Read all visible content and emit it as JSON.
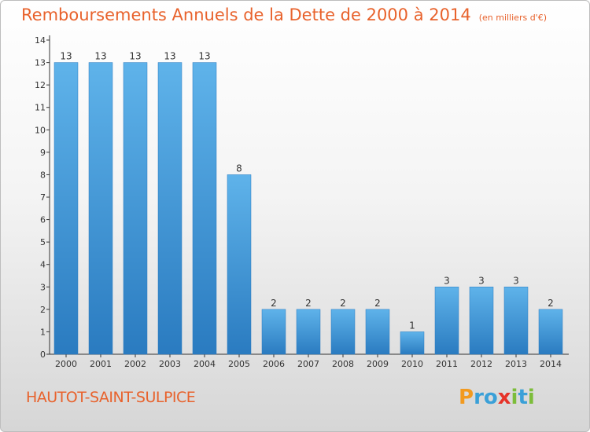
{
  "header": {
    "title": "Remboursements Annuels de la Dette de 2000 à 2014",
    "unit": "(en milliers d'€)"
  },
  "footer": {
    "commune": "HAUTOT-SAINT-SULPICE",
    "logo_letters": [
      "P",
      "r",
      "o",
      "x",
      "i",
      "t",
      "i"
    ],
    "logo_colors": [
      "#f29a1f",
      "#3aa0d8",
      "#3aa0d8",
      "#e63329",
      "#7cbd3a",
      "#3aa0d8",
      "#7cbd3a"
    ]
  },
  "colors": {
    "title": "#e8622c",
    "bar_light": "#5aaee6",
    "bar_dark": "#2a7fc4",
    "axis": "#333333"
  },
  "chart_data": {
    "type": "bar",
    "categories": [
      "2000",
      "2001",
      "2002",
      "2003",
      "2004",
      "2005",
      "2006",
      "2007",
      "2008",
      "2009",
      "2010",
      "2011",
      "2012",
      "2013",
      "2014"
    ],
    "values": [
      13,
      13,
      13,
      13,
      13,
      8,
      2,
      2,
      2,
      2,
      1,
      3,
      3,
      3,
      2
    ],
    "ylim": [
      0,
      14
    ],
    "yticks": [
      0,
      1,
      2,
      3,
      4,
      5,
      6,
      7,
      8,
      9,
      10,
      11,
      12,
      13,
      14
    ],
    "grid": false
  }
}
